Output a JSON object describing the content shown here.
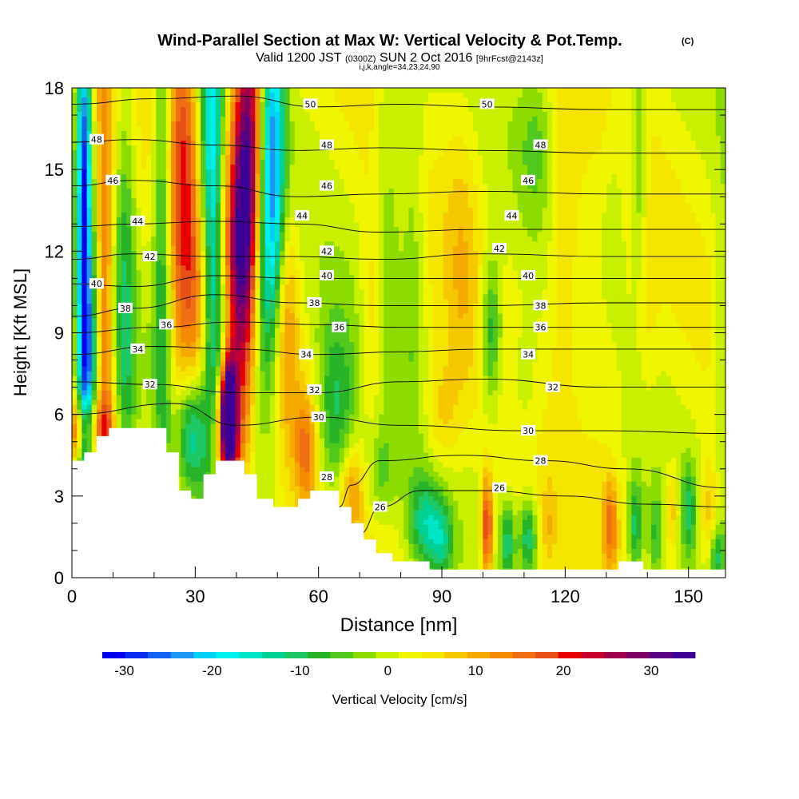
{
  "title": {
    "main": "Wind-Parallel Section at Max W: Vertical Velocity & Pot.Temp.",
    "copyright": "(C)",
    "valid_prefix": "Valid 1200 JST",
    "valid_z": "(0300Z)",
    "valid_date": "SUN 2 Oct 2016",
    "fcst": "[9hrFcst@2143z]",
    "indices": "i,j,k,angle=34,23,24,90"
  },
  "chart_data": {
    "type": "heatmap",
    "xlabel": "Distance [nm]",
    "ylabel": "Height [Kft MSL]",
    "xlim": [
      0,
      159
    ],
    "ylim": [
      0,
      18
    ],
    "x_ticks": [
      0,
      30,
      60,
      90,
      120,
      150
    ],
    "y_ticks": [
      0,
      3,
      6,
      9,
      12,
      15,
      18
    ],
    "grid": false,
    "colorbar": {
      "label": "Vertical Velocity [cm/s]",
      "ticks": [
        -30,
        -20,
        -10,
        0,
        10,
        20,
        30
      ],
      "min": -32.5,
      "max": 35,
      "colors": [
        "#0000ee",
        "#0a2cf0",
        "#1462f2",
        "#1e96f4",
        "#00d2f5",
        "#00f0f0",
        "#00e6c8",
        "#00d296",
        "#1ec864",
        "#28b428",
        "#50c81e",
        "#8cdc00",
        "#c8f000",
        "#f0f500",
        "#f5e600",
        "#f5c800",
        "#f5aa00",
        "#f58c00",
        "#f06e14",
        "#e65014",
        "#e60000",
        "#c8002d",
        "#a0004b",
        "#7d0064",
        "#5a0082",
        "#3c0096"
      ]
    },
    "terrain": [
      [
        0,
        4.3
      ],
      [
        3,
        4.3
      ],
      [
        3,
        4.6
      ],
      [
        6,
        4.6
      ],
      [
        6,
        5.2
      ],
      [
        9,
        5.2
      ],
      [
        9,
        5.5
      ],
      [
        23,
        5.5
      ],
      [
        23,
        4.6
      ],
      [
        26,
        4.6
      ],
      [
        26,
        3.2
      ],
      [
        29,
        3.2
      ],
      [
        29,
        2.9
      ],
      [
        32,
        2.9
      ],
      [
        32,
        3.8
      ],
      [
        35,
        3.8
      ],
      [
        35,
        4.3
      ],
      [
        42,
        4.3
      ],
      [
        42,
        3.8
      ],
      [
        45,
        3.8
      ],
      [
        45,
        2.9
      ],
      [
        49,
        2.9
      ],
      [
        49,
        2.6
      ],
      [
        55,
        2.6
      ],
      [
        55,
        2.9
      ],
      [
        58,
        2.9
      ],
      [
        58,
        3.2
      ],
      [
        65,
        3.2
      ],
      [
        65,
        2.6
      ],
      [
        68,
        2.6
      ],
      [
        68,
        2.0
      ],
      [
        71,
        2.0
      ],
      [
        71,
        1.4
      ],
      [
        74,
        1.4
      ],
      [
        74,
        0.9
      ],
      [
        78,
        0.9
      ],
      [
        78,
        0.6
      ],
      [
        87,
        0.6
      ],
      [
        87,
        0.3
      ],
      [
        133,
        0.3
      ],
      [
        133,
        0.6
      ],
      [
        139,
        0.6
      ],
      [
        139,
        0.3
      ],
      [
        159,
        0.3
      ]
    ],
    "theta_series": [
      {
        "name": "50",
        "values": [
          [
            0,
            17.4
          ],
          [
            20,
            17.6
          ],
          [
            40,
            17.7
          ],
          [
            60,
            17.3
          ],
          [
            80,
            17.4
          ],
          [
            100,
            17.3
          ],
          [
            130,
            17.2
          ],
          [
            159,
            17.2
          ]
        ]
      },
      {
        "name": "48",
        "values": [
          [
            0,
            16.0
          ],
          [
            15,
            16.1
          ],
          [
            35,
            15.9
          ],
          [
            55,
            15.7
          ],
          [
            75,
            15.8
          ],
          [
            100,
            15.7
          ],
          [
            130,
            15.6
          ],
          [
            159,
            15.6
          ]
        ]
      },
      {
        "name": "46",
        "values": [
          [
            0,
            14.4
          ],
          [
            15,
            14.6
          ],
          [
            35,
            14.4
          ],
          [
            55,
            14.0
          ],
          [
            75,
            14.1
          ],
          [
            100,
            14.2
          ],
          [
            130,
            14.1
          ],
          [
            159,
            14.1
          ]
        ]
      },
      {
        "name": "44",
        "values": [
          [
            0,
            12.9
          ],
          [
            15,
            13.0
          ],
          [
            35,
            13.1
          ],
          [
            55,
            13.0
          ],
          [
            75,
            12.7
          ],
          [
            100,
            12.8
          ],
          [
            130,
            12.8
          ],
          [
            159,
            12.8
          ]
        ]
      },
      {
        "name": "42",
        "values": [
          [
            0,
            11.7
          ],
          [
            15,
            11.9
          ],
          [
            35,
            11.8
          ],
          [
            55,
            11.8
          ],
          [
            75,
            11.7
          ],
          [
            100,
            11.9
          ],
          [
            130,
            11.8
          ],
          [
            159,
            11.8
          ]
        ]
      },
      {
        "name": "40",
        "values": [
          [
            0,
            10.8
          ],
          [
            15,
            10.7
          ],
          [
            35,
            11.1
          ],
          [
            55,
            11.0
          ],
          [
            75,
            11.0
          ],
          [
            100,
            11.0
          ],
          [
            130,
            11.0
          ],
          [
            159,
            11.0
          ]
        ]
      },
      {
        "name": "38",
        "values": [
          [
            0,
            9.6
          ],
          [
            15,
            9.9
          ],
          [
            35,
            10.4
          ],
          [
            55,
            10.1
          ],
          [
            75,
            10.0
          ],
          [
            100,
            10.0
          ],
          [
            130,
            10.1
          ],
          [
            159,
            10.1
          ]
        ]
      },
      {
        "name": "36",
        "values": [
          [
            0,
            9.0
          ],
          [
            20,
            9.2
          ],
          [
            40,
            9.4
          ],
          [
            60,
            9.3
          ],
          [
            80,
            9.2
          ],
          [
            100,
            9.2
          ],
          [
            130,
            9.2
          ],
          [
            159,
            9.2
          ]
        ]
      },
      {
        "name": "34",
        "values": [
          [
            0,
            8.2
          ],
          [
            20,
            8.5
          ],
          [
            40,
            8.4
          ],
          [
            60,
            8.2
          ],
          [
            80,
            8.3
          ],
          [
            100,
            8.4
          ],
          [
            130,
            8.4
          ],
          [
            159,
            8.4
          ]
        ]
      },
      {
        "name": "32",
        "values": [
          [
            0,
            7.2
          ],
          [
            20,
            7.1
          ],
          [
            40,
            6.8
          ],
          [
            60,
            6.8
          ],
          [
            80,
            7.2
          ],
          [
            100,
            7.3
          ],
          [
            130,
            7.0
          ],
          [
            159,
            7.0
          ]
        ]
      },
      {
        "name": "30",
        "values": [
          [
            0,
            6.0
          ],
          [
            25,
            6.4
          ],
          [
            40,
            5.6
          ],
          [
            60,
            5.9
          ],
          [
            80,
            5.6
          ],
          [
            110,
            5.4
          ],
          [
            130,
            5.4
          ],
          [
            159,
            5.3
          ]
        ]
      },
      {
        "name": "28",
        "values": [
          [
            65,
            2.6
          ],
          [
            68,
            3.4
          ],
          [
            75,
            4.3
          ],
          [
            95,
            4.5
          ],
          [
            115,
            4.3
          ],
          [
            135,
            4.0
          ],
          [
            159,
            3.3
          ]
        ]
      },
      {
        "name": "26",
        "values": [
          [
            70,
            1.6
          ],
          [
            75,
            2.6
          ],
          [
            85,
            3.2
          ],
          [
            100,
            3.2
          ],
          [
            120,
            3.0
          ],
          [
            140,
            2.7
          ],
          [
            159,
            2.6
          ]
        ]
      }
    ],
    "theta_labels": [
      {
        "text": "50",
        "x": 58,
        "y": 17.4
      },
      {
        "text": "50",
        "x": 101,
        "y": 17.4
      },
      {
        "text": "48",
        "x": 6,
        "y": 16.1
      },
      {
        "text": "48",
        "x": 62,
        "y": 15.9
      },
      {
        "text": "48",
        "x": 114,
        "y": 15.9
      },
      {
        "text": "46",
        "x": 10,
        "y": 14.6
      },
      {
        "text": "46",
        "x": 62,
        "y": 14.4
      },
      {
        "text": "46",
        "x": 111,
        "y": 14.6
      },
      {
        "text": "44",
        "x": 16,
        "y": 13.1
      },
      {
        "text": "44",
        "x": 56,
        "y": 13.3
      },
      {
        "text": "44",
        "x": 107,
        "y": 13.3
      },
      {
        "text": "42",
        "x": 19,
        "y": 11.8
      },
      {
        "text": "42",
        "x": 62,
        "y": 12.0
      },
      {
        "text": "42",
        "x": 104,
        "y": 12.1
      },
      {
        "text": "40",
        "x": 6,
        "y": 10.8
      },
      {
        "text": "40",
        "x": 62,
        "y": 11.1
      },
      {
        "text": "40",
        "x": 111,
        "y": 11.1
      },
      {
        "text": "38",
        "x": 13,
        "y": 9.9
      },
      {
        "text": "38",
        "x": 59,
        "y": 10.1
      },
      {
        "text": "38",
        "x": 114,
        "y": 10.0
      },
      {
        "text": "36",
        "x": 23,
        "y": 9.3
      },
      {
        "text": "36",
        "x": 65,
        "y": 9.2
      },
      {
        "text": "36",
        "x": 114,
        "y": 9.2
      },
      {
        "text": "34",
        "x": 16,
        "y": 8.4
      },
      {
        "text": "34",
        "x": 57,
        "y": 8.2
      },
      {
        "text": "34",
        "x": 111,
        "y": 8.2
      },
      {
        "text": "32",
        "x": 19,
        "y": 7.1
      },
      {
        "text": "32",
        "x": 59,
        "y": 6.9
      },
      {
        "text": "32",
        "x": 117,
        "y": 7.0
      },
      {
        "text": "30",
        "x": 60,
        "y": 5.9
      },
      {
        "text": "30",
        "x": 111,
        "y": 5.4
      },
      {
        "text": "28",
        "x": 62,
        "y": 3.7
      },
      {
        "text": "28",
        "x": 114,
        "y": 4.3
      },
      {
        "text": "26",
        "x": 75,
        "y": 2.6
      },
      {
        "text": "26",
        "x": 104,
        "y": 3.3
      }
    ],
    "w_field": {
      "background": 2,
      "blobs": [
        {
          "x": 3,
          "y": 14,
          "sx": 1.2,
          "sy": 6,
          "v": -30
        },
        {
          "x": 4,
          "y": 7,
          "sx": 1.8,
          "sy": 3,
          "v": -18
        },
        {
          "x": 8,
          "y": 10,
          "sx": 1.5,
          "sy": 8,
          "v": 14
        },
        {
          "x": 13,
          "y": 9,
          "sx": 1.8,
          "sy": 7,
          "v": -10
        },
        {
          "x": 3,
          "y": 5.5,
          "sx": 5,
          "sy": 0.8,
          "v": 13
        },
        {
          "x": 22,
          "y": 13,
          "sx": 1.5,
          "sy": 7,
          "v": -12
        },
        {
          "x": 27,
          "y": 14,
          "sx": 2.5,
          "sy": 6,
          "v": 16
        },
        {
          "x": 31,
          "y": 10,
          "sx": 2,
          "sy": 3,
          "v": 8
        },
        {
          "x": 34,
          "y": 15,
          "sx": 2,
          "sy": 7,
          "v": -22
        },
        {
          "x": 43,
          "y": 15.5,
          "sx": 2.5,
          "sy": 4.5,
          "v": 30
        },
        {
          "x": 40,
          "y": 11,
          "sx": 2.5,
          "sy": 4,
          "v": 18
        },
        {
          "x": 38,
          "y": 6.2,
          "sx": 1.3,
          "sy": 1.4,
          "v": 35
        },
        {
          "x": 38,
          "y": 5.0,
          "sx": 2.5,
          "sy": 1.5,
          "v": 16
        },
        {
          "x": 29,
          "y": 5.3,
          "sx": 2.5,
          "sy": 1.5,
          "v": -16
        },
        {
          "x": 37,
          "y": 9,
          "sx": 2,
          "sy": 2,
          "v": -8
        },
        {
          "x": 49,
          "y": 15,
          "sx": 2,
          "sy": 5,
          "v": -24
        },
        {
          "x": 46,
          "y": 10.5,
          "sx": 2,
          "sy": 4,
          "v": -12
        },
        {
          "x": 52,
          "y": 9.5,
          "sx": 2.2,
          "sy": 3,
          "v": 10
        },
        {
          "x": 57,
          "y": 4.7,
          "sx": 2,
          "sy": 1.6,
          "v": 12
        },
        {
          "x": 64,
          "y": 6,
          "sx": 3.5,
          "sy": 2.5,
          "v": -12
        },
        {
          "x": 68,
          "y": 3.2,
          "sx": 2,
          "sy": 1.2,
          "v": 10
        },
        {
          "x": 75,
          "y": 3.8,
          "sx": 2.5,
          "sy": 1.2,
          "v": -6
        },
        {
          "x": 86,
          "y": 2,
          "sx": 2.8,
          "sy": 1.2,
          "v": -13
        },
        {
          "x": 90,
          "y": 1.3,
          "sx": 2,
          "sy": 1,
          "v": -10
        },
        {
          "x": 101,
          "y": 1.8,
          "sx": 1,
          "sy": 1.4,
          "v": 20
        },
        {
          "x": 106,
          "y": 1.3,
          "sx": 1.2,
          "sy": 1,
          "v": -12
        },
        {
          "x": 111,
          "y": 1.5,
          "sx": 1.5,
          "sy": 1,
          "v": -13
        },
        {
          "x": 116,
          "y": 1.8,
          "sx": 1.2,
          "sy": 1.2,
          "v": 5
        },
        {
          "x": 131,
          "y": 2,
          "sx": 1.3,
          "sy": 1.2,
          "v": 12
        },
        {
          "x": 137,
          "y": 1.8,
          "sx": 1.3,
          "sy": 1.3,
          "v": -12
        },
        {
          "x": 142,
          "y": 1.5,
          "sx": 1.3,
          "sy": 1.2,
          "v": -8
        },
        {
          "x": 146,
          "y": 2.5,
          "sx": 1.3,
          "sy": 1.2,
          "v": 8
        },
        {
          "x": 150,
          "y": 2.5,
          "sx": 1.3,
          "sy": 1.2,
          "v": -10
        },
        {
          "x": 155,
          "y": 2.3,
          "sx": 1.6,
          "sy": 1.5,
          "v": 8
        },
        {
          "x": 157,
          "y": 0.8,
          "sx": 1.3,
          "sy": 0.8,
          "v": -10
        },
        {
          "x": 138,
          "y": 15,
          "sx": 1.5,
          "sy": 3,
          "v": -8
        },
        {
          "x": 140,
          "y": 10,
          "sx": 2,
          "sy": 3,
          "v": 3
        },
        {
          "x": 132,
          "y": 13,
          "sx": 2,
          "sy": 3,
          "v": -4
        },
        {
          "x": 77,
          "y": 14,
          "sx": 2.5,
          "sy": 5,
          "v": -6
        },
        {
          "x": 73,
          "y": 9.5,
          "sx": 2,
          "sy": 3,
          "v": 6
        },
        {
          "x": 83,
          "y": 12.5,
          "sx": 2,
          "sy": 5,
          "v": -6
        },
        {
          "x": 95,
          "y": 12,
          "sx": 3,
          "sy": 4,
          "v": 5
        },
        {
          "x": 120,
          "y": 12.5,
          "sx": 3,
          "sy": 4,
          "v": 6
        },
        {
          "x": 113,
          "y": 16,
          "sx": 3,
          "sy": 2,
          "v": -5
        },
        {
          "x": 102,
          "y": 9,
          "sx": 1.8,
          "sy": 2,
          "v": -12
        },
        {
          "x": 110,
          "y": 7,
          "sx": 3,
          "sy": 2,
          "v": -4
        },
        {
          "x": 130,
          "y": 8,
          "sx": 4,
          "sy": 3,
          "v": 4
        },
        {
          "x": 158,
          "y": 9,
          "sx": 1.5,
          "sy": 4,
          "v": -5
        },
        {
          "x": 90,
          "y": 6,
          "sx": 3,
          "sy": 1.5,
          "v": 6
        }
      ]
    }
  }
}
